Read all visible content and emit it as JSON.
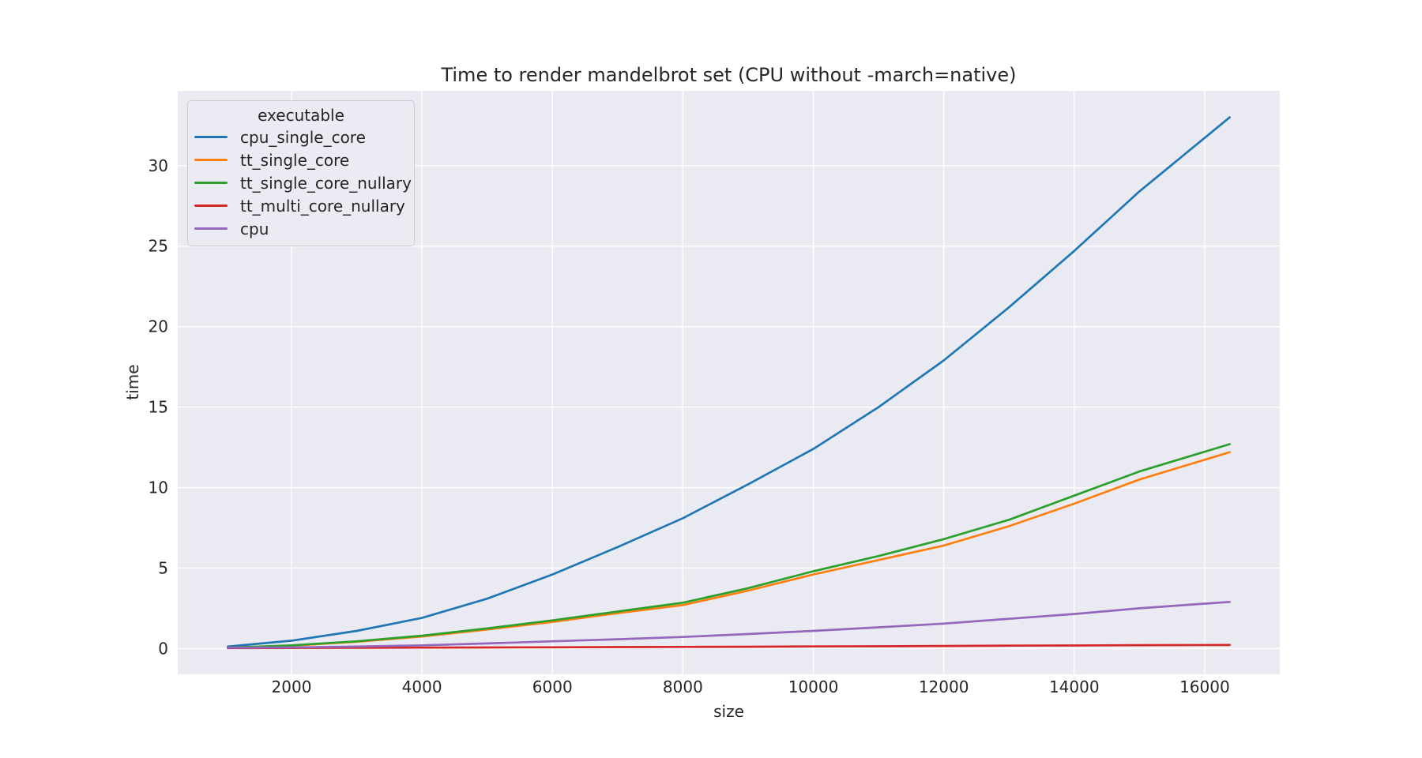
{
  "chart_data": {
    "type": "line",
    "title": "Time to render mandelbrot set (CPU without -march=native)",
    "xlabel": "size",
    "ylabel": "time",
    "legend": {
      "title": "executable",
      "position": "upper left"
    },
    "grid": true,
    "colors": {
      "axes_background": "#eaeaf2",
      "grid": "#ffffff",
      "text": "#262626",
      "legend_background": "#ebebf3",
      "legend_border": "#cccccc",
      "figure_background": "#ffffff"
    },
    "xlim": [
      256,
      17152
    ],
    "ylim": [
      -1.6,
      34.65
    ],
    "xticks": [
      2000,
      4000,
      6000,
      8000,
      10000,
      12000,
      14000,
      16000
    ],
    "yticks": [
      0,
      5,
      10,
      15,
      20,
      25,
      30
    ],
    "x": [
      1024,
      2000,
      3000,
      4000,
      5000,
      6000,
      7000,
      8000,
      9000,
      10000,
      11000,
      12000,
      13000,
      14000,
      15000,
      16384
    ],
    "series": [
      {
        "name": "cpu_single_core",
        "color": "#1f77b4",
        "values": [
          0.12,
          0.49,
          1.1,
          1.9,
          3.1,
          4.6,
          6.3,
          8.1,
          10.2,
          12.4,
          15.0,
          17.9,
          21.2,
          24.7,
          28.4,
          33.0
        ]
      },
      {
        "name": "tt_single_core",
        "color": "#ff7f0e",
        "values": [
          0.05,
          0.18,
          0.42,
          0.75,
          1.18,
          1.65,
          2.2,
          2.7,
          3.6,
          4.6,
          5.5,
          6.4,
          7.6,
          9.0,
          10.5,
          12.2
        ]
      },
      {
        "name": "tt_single_core_nullary",
        "color": "#2ca02c",
        "values": [
          0.05,
          0.2,
          0.45,
          0.8,
          1.25,
          1.75,
          2.3,
          2.85,
          3.75,
          4.8,
          5.75,
          6.8,
          8.0,
          9.5,
          11.0,
          12.7
        ]
      },
      {
        "name": "tt_multi_core_nullary",
        "color": "#d62728",
        "values": [
          0.03,
          0.04,
          0.05,
          0.06,
          0.07,
          0.08,
          0.09,
          0.1,
          0.11,
          0.13,
          0.14,
          0.16,
          0.18,
          0.19,
          0.21,
          0.22
        ]
      },
      {
        "name": "cpu",
        "color": "#9467bd",
        "values": [
          0.05,
          0.07,
          0.12,
          0.2,
          0.32,
          0.45,
          0.58,
          0.72,
          0.9,
          1.1,
          1.32,
          1.55,
          1.85,
          2.15,
          2.5,
          2.9
        ]
      }
    ]
  }
}
